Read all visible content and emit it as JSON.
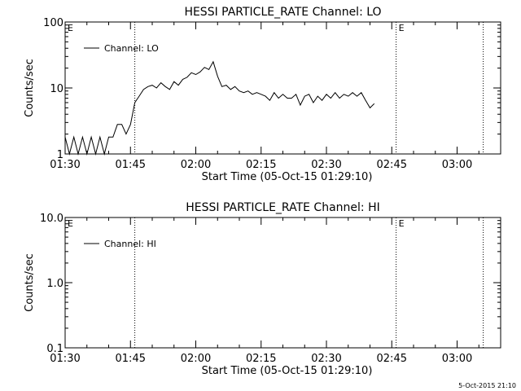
{
  "footer_stamp": "5-Oct-2015 21:10",
  "chart_data": [
    {
      "type": "line",
      "title": "HESSI PARTICLE_RATE Channel: LO",
      "xlabel": "Start Time (05-Oct-15 01:29:10)",
      "ylabel": "Counts/sec",
      "yscale": "log",
      "ylim": [
        1,
        100
      ],
      "yticks": [
        "1",
        "10",
        "100"
      ],
      "xlim": [
        "01:30",
        "03:10"
      ],
      "xticks": [
        "01:30",
        "01:45",
        "02:00",
        "02:15",
        "02:30",
        "02:45",
        "03:00"
      ],
      "legend_label": "Channel: LO",
      "legend": "top-left",
      "vlines": [
        "01:46",
        "02:46",
        "03:06"
      ],
      "markers": [
        {
          "label": "E",
          "x": "01:30"
        },
        {
          "label": "E",
          "x": "02:46"
        }
      ],
      "series": [
        {
          "name": "Channel: LO",
          "x": [
            "01:30",
            "01:31",
            "01:32",
            "01:33",
            "01:34",
            "01:35",
            "01:36",
            "01:37",
            "01:38",
            "01:39",
            "01:40",
            "01:41",
            "01:42",
            "01:43",
            "01:44",
            "01:45",
            "01:46",
            "01:47",
            "01:48",
            "01:49",
            "01:50",
            "01:51",
            "01:52",
            "01:53",
            "01:54",
            "01:55",
            "01:56",
            "01:57",
            "01:58",
            "01:59",
            "02:00",
            "02:01",
            "02:02",
            "02:03",
            "02:04",
            "02:05",
            "02:06",
            "02:07",
            "02:08",
            "02:09",
            "02:10",
            "02:11",
            "02:12",
            "02:13",
            "02:14",
            "02:15",
            "02:16",
            "02:17",
            "02:18",
            "02:19",
            "02:20",
            "02:21",
            "02:22",
            "02:23",
            "02:24",
            "02:25",
            "02:26",
            "02:27",
            "02:28",
            "02:29",
            "02:30",
            "02:31",
            "02:32",
            "02:33",
            "02:34",
            "02:35",
            "02:36",
            "02:37",
            "02:38",
            "02:39",
            "02:40",
            "02:41"
          ],
          "y": [
            1.8,
            0.8,
            1.8,
            0.8,
            1.8,
            0.8,
            1.8,
            0.8,
            1.8,
            1.0,
            1.8,
            1.8,
            2.8,
            2.8,
            2.0,
            2.8,
            6.0,
            7.5,
            9.5,
            10.5,
            11.0,
            10.0,
            12.0,
            10.5,
            9.5,
            12.5,
            11.0,
            13.5,
            14.5,
            17.0,
            16.0,
            17.5,
            20.5,
            19.0,
            25.0,
            15.0,
            10.5,
            11.0,
            9.5,
            10.5,
            9.0,
            8.5,
            9.0,
            8.0,
            8.5,
            8.0,
            7.5,
            6.5,
            8.5,
            7.0,
            8.0,
            7.0,
            7.0,
            8.0,
            5.5,
            7.5,
            8.0,
            6.0,
            7.5,
            6.5,
            8.0,
            7.0,
            8.5,
            7.0,
            8.0,
            7.5,
            8.5,
            7.5,
            8.5,
            6.5,
            5.0,
            5.8
          ]
        }
      ]
    },
    {
      "type": "line",
      "title": "HESSI PARTICLE_RATE Channel: HI",
      "xlabel": "Start Time (05-Oct-15 01:29:10)",
      "ylabel": "Counts/sec",
      "yscale": "log",
      "ylim": [
        0.1,
        10
      ],
      "yticks": [
        "0.1",
        "1.0",
        "10.0"
      ],
      "xlim": [
        "01:30",
        "03:10"
      ],
      "xticks": [
        "01:30",
        "01:45",
        "02:00",
        "02:15",
        "02:30",
        "02:45",
        "03:00"
      ],
      "legend_label": "Channel: HI",
      "legend": "top-left",
      "vlines": [
        "01:46",
        "02:46",
        "03:06"
      ],
      "markers": [
        {
          "label": "E",
          "x": "01:30"
        },
        {
          "label": "E",
          "x": "02:46"
        }
      ],
      "series": [
        {
          "name": "Channel: HI",
          "x": [],
          "y": []
        }
      ]
    }
  ]
}
